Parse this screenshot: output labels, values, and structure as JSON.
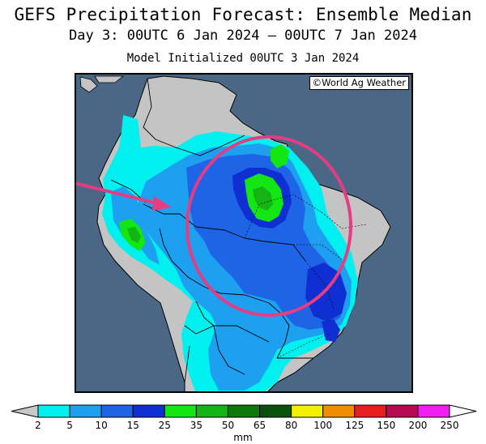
{
  "title": "GEFS Precipitation Forecast: Ensemble Median",
  "subtitle": "Day 3: 00UTC 6 Jan 2024 — 00UTC 7 Jan 2024",
  "initialized": "Model Initialized 00UTC 3 Jan 2024",
  "credit": "©World Ag Weather",
  "colors": {
    "ocean": "#4a6886",
    "land": "#c4c4c4",
    "annotation": "#e63c82"
  },
  "annotations": [
    {
      "type": "arrow",
      "color": "#e63c82"
    },
    {
      "type": "ellipse",
      "color": "#e63c82"
    }
  ],
  "legend": {
    "unit": "mm",
    "ticks": [
      "2",
      "5",
      "10",
      "15",
      "25",
      "35",
      "50",
      "65",
      "80",
      "100",
      "125",
      "150",
      "200",
      "250"
    ],
    "colors": [
      "#00f0f0",
      "#1ea0f0",
      "#1e64e6",
      "#0f2fd2",
      "#14e614",
      "#14b414",
      "#0a780a",
      "#0a500a",
      "#f0f000",
      "#f08c00",
      "#e61e1e",
      "#b40a50",
      "#f01ef0",
      "#a050dc"
    ],
    "under_color": "#c8c8c8",
    "over_color": "#ffffff"
  }
}
